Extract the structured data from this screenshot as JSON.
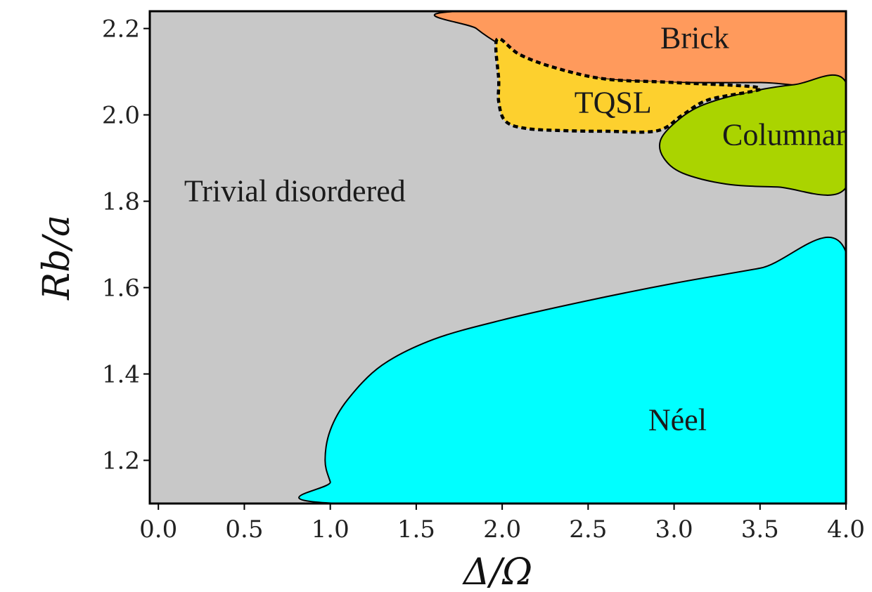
{
  "chart_data": {
    "type": "phase_diagram",
    "xlabel": "Δ/Ω",
    "ylabel": "Rb/a",
    "xlim": [
      -0.05,
      4.0
    ],
    "ylim": [
      1.1,
      2.24
    ],
    "x_ticks": [
      0.0,
      0.5,
      1.0,
      1.5,
      2.0,
      2.5,
      3.0,
      3.5,
      4.0
    ],
    "x_tick_labels": [
      "0.0",
      "0.5",
      "1.0",
      "1.5",
      "2.0",
      "2.5",
      "3.0",
      "3.5",
      "4.0"
    ],
    "y_ticks": [
      1.2,
      1.4,
      1.6,
      1.8,
      2.0,
      2.2
    ],
    "y_tick_labels": [
      "1.2",
      "1.4",
      "1.6",
      "1.8",
      "2.0",
      "2.2"
    ],
    "grid": false,
    "background_phase": {
      "name": "Trivial disordered",
      "color": "#c8c8c8",
      "label_at": [
        0.15,
        1.8
      ]
    },
    "phases": [
      {
        "name": "Brick",
        "color": "#ff9a5c",
        "label_at": [
          2.92,
          2.155
        ],
        "label_color": "#1a1a1a",
        "boundary_style": "solid",
        "polygon": [
          [
            1.75,
            2.24
          ],
          [
            1.85,
            2.2
          ],
          [
            2.0,
            2.16
          ],
          [
            2.2,
            2.12
          ],
          [
            2.4,
            2.095
          ],
          [
            2.6,
            2.083
          ],
          [
            2.8,
            2.078
          ],
          [
            3.0,
            2.075
          ],
          [
            3.5,
            2.075
          ],
          [
            4.0,
            2.077
          ],
          [
            4.0,
            2.24
          ]
        ]
      },
      {
        "name": "Columnar",
        "color": "#aad400",
        "label_at": [
          3.28,
          1.93
        ],
        "label_color": "#1a1a1a",
        "boundary_style": "solid",
        "polygon": [
          [
            4.0,
            2.075
          ],
          [
            3.7,
            2.07
          ],
          [
            3.4,
            2.05
          ],
          [
            3.15,
            2.02
          ],
          [
            3.0,
            1.98
          ],
          [
            2.92,
            1.94
          ],
          [
            2.94,
            1.9
          ],
          [
            3.05,
            1.865
          ],
          [
            3.3,
            1.84
          ],
          [
            3.6,
            1.833
          ],
          [
            4.0,
            1.832
          ]
        ]
      },
      {
        "name": "TQSL",
        "color": "#fdd02e",
        "label_at": [
          2.42,
          2.005
        ],
        "label_color": "#8b0000",
        "boundary_style": "dotted",
        "polygon": [
          [
            1.97,
            2.175
          ],
          [
            1.98,
            2.08
          ],
          [
            1.98,
            2.03
          ],
          [
            2.02,
            1.985
          ],
          [
            2.15,
            1.968
          ],
          [
            2.4,
            1.963
          ],
          [
            2.6,
            1.962
          ],
          [
            2.9,
            1.963
          ],
          [
            3.05,
            2.0
          ],
          [
            3.2,
            2.035
          ],
          [
            3.5,
            2.062
          ],
          [
            3.0,
            2.075
          ],
          [
            2.6,
            2.083
          ],
          [
            2.3,
            2.11
          ],
          [
            2.1,
            2.14
          ]
        ]
      },
      {
        "name": "Néel",
        "color": "#00ffff",
        "label_at": [
          2.85,
          1.27
        ],
        "label_color": "#1a1a1a",
        "boundary_style": "solid",
        "polygon": [
          [
            1.05,
            1.1
          ],
          [
            1.0,
            1.15
          ],
          [
            0.97,
            1.2
          ],
          [
            1.0,
            1.27
          ],
          [
            1.1,
            1.34
          ],
          [
            1.3,
            1.42
          ],
          [
            1.6,
            1.48
          ],
          [
            2.0,
            1.525
          ],
          [
            2.5,
            1.57
          ],
          [
            3.0,
            1.61
          ],
          [
            3.5,
            1.645
          ],
          [
            4.0,
            1.682
          ],
          [
            4.0,
            1.1
          ]
        ]
      }
    ]
  }
}
